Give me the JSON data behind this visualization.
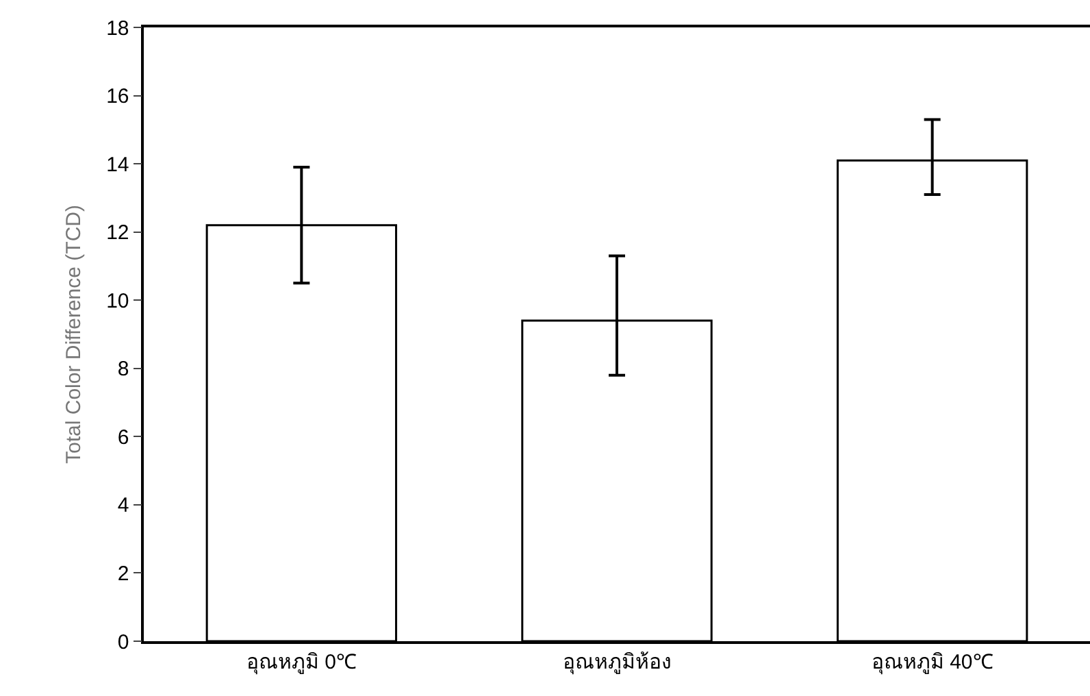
{
  "chart_data": {
    "type": "bar",
    "ylabel": "Total Color Difference (TCD)",
    "categories": [
      "อุณหภูมิ 0℃",
      "อุณหภูมิห้อง",
      "อุณหภูมิ 40℃"
    ],
    "series": [
      {
        "color": "#ffffff",
        "values": [
          12.2,
          9.4,
          14.1
        ],
        "errors": [
          [
            10.5,
            13.9
          ],
          [
            7.8,
            11.3
          ],
          [
            13.1,
            15.3
          ]
        ]
      }
    ],
    "ylim": [
      0,
      18
    ],
    "yticks": [
      0,
      2,
      4,
      6,
      8,
      10,
      12,
      14,
      16,
      18
    ]
  }
}
